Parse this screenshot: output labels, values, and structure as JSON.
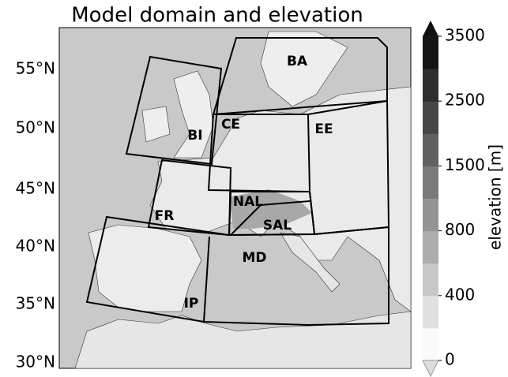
{
  "title": "Model domain and elevation",
  "lat_labels": [
    "55°N",
    "50°N",
    "45°N",
    "40°N",
    "35°N",
    "30°N"
  ],
  "regions": [
    "BA",
    "BI",
    "CE",
    "EE",
    "FR",
    "NAL",
    "SAL",
    "MD",
    "IP"
  ],
  "colorbar": {
    "label": "elevation [m]",
    "ticks": [
      0,
      400,
      800,
      1500,
      2500,
      3500
    ]
  }
}
